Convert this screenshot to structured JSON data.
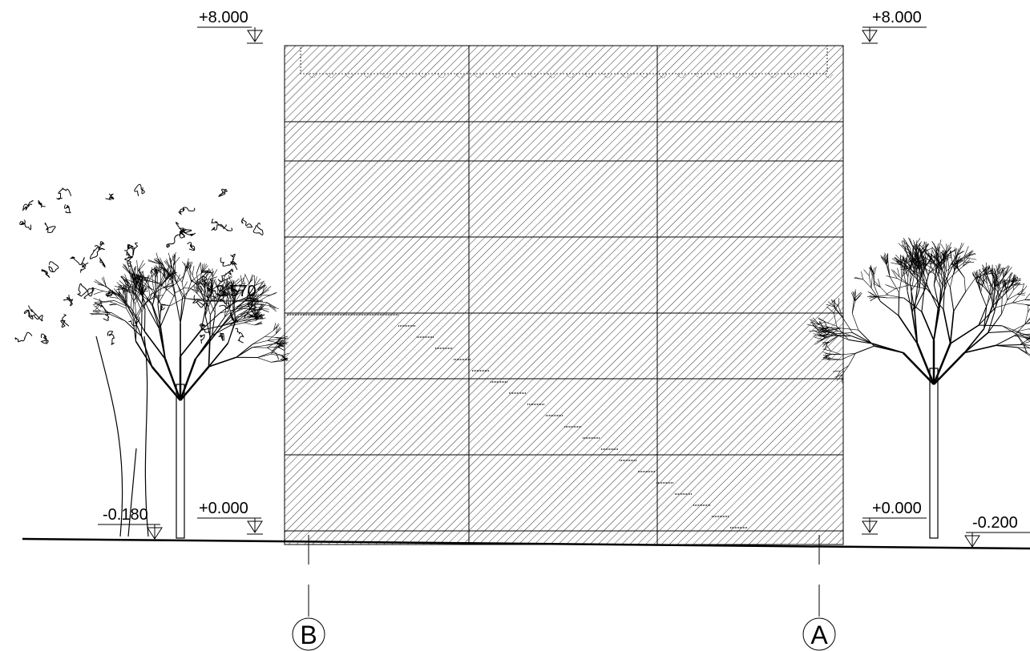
{
  "levels": [
    {
      "label": "+8.000"
    },
    {
      "label": "+8.000"
    },
    {
      "label": "+3.570"
    },
    {
      "label": "+0.000"
    },
    {
      "label": "+0.000"
    },
    {
      "label": "-0.180"
    },
    {
      "label": "-0.200"
    }
  ],
  "axes": [
    {
      "label": "B"
    },
    {
      "label": "A"
    }
  ]
}
